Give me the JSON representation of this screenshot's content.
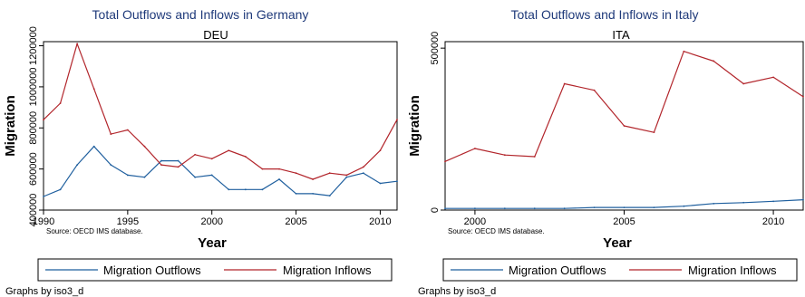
{
  "chart_data": [
    {
      "type": "line",
      "title": "Total Outflows and Inflows in Germany",
      "subtitle": "DEU",
      "xlabel": "Year",
      "ylabel": "Migration",
      "xlim": [
        1990,
        2011
      ],
      "ylim": [
        400000,
        1220000
      ],
      "x_ticks": [
        1990,
        1995,
        2000,
        2005,
        2010
      ],
      "y_ticks": [
        {
          "value": 400000,
          "label": "400000"
        },
        {
          "value": 600000,
          "label": "600000"
        },
        {
          "value": 800000,
          "label": "800000"
        },
        {
          "value": 1000000,
          "label": "1000000"
        },
        {
          "value": 1200000,
          "label": "1200000"
        }
      ],
      "source": "Source: OECD IMS database.",
      "series": [
        {
          "name": "Migration Outflows",
          "color": "#1f5f9e",
          "x": [
            1990,
            1991,
            1992,
            1993,
            1994,
            1995,
            1996,
            1997,
            1998,
            1999,
            2000,
            2001,
            2002,
            2003,
            2004,
            2005,
            2006,
            2007,
            2008,
            2009,
            2010,
            2011
          ],
          "values": [
            466000,
            500000,
            620000,
            710000,
            620000,
            570000,
            560000,
            640000,
            640000,
            560000,
            570000,
            500000,
            500000,
            500000,
            550000,
            480000,
            480000,
            470000,
            560000,
            580000,
            530000,
            540000
          ]
        },
        {
          "name": "Migration Inflows",
          "color": "#b2252b",
          "x": [
            1990,
            1991,
            1992,
            1993,
            1994,
            1995,
            1996,
            1997,
            1998,
            1999,
            2000,
            2001,
            2002,
            2003,
            2004,
            2005,
            2006,
            2007,
            2008,
            2009,
            2010,
            2011
          ],
          "values": [
            840000,
            920000,
            1210000,
            990000,
            770000,
            790000,
            710000,
            620000,
            610000,
            670000,
            650000,
            690000,
            660000,
            600000,
            600000,
            580000,
            550000,
            580000,
            570000,
            610000,
            690000,
            840000
          ]
        }
      ]
    },
    {
      "type": "line",
      "title": "Total Outflows and Inflows in Italy",
      "subtitle": "ITA",
      "xlabel": "Year",
      "ylabel": "Migration",
      "xlim": [
        1999,
        2011
      ],
      "ylim": [
        0,
        520000
      ],
      "x_ticks": [
        2000,
        2005,
        2010
      ],
      "y_ticks": [
        {
          "value": 0,
          "label": "0"
        },
        {
          "value": 500000,
          "label": "500000"
        }
      ],
      "source": "Source: OECD IMS database.",
      "series": [
        {
          "name": "Migration Outflows",
          "color": "#1f5f9e",
          "x": [
            1999,
            2000,
            2001,
            2002,
            2003,
            2004,
            2005,
            2006,
            2007,
            2008,
            2009,
            2010,
            2011
          ],
          "values": [
            5000,
            5000,
            5000,
            5000,
            5000,
            8000,
            8000,
            8000,
            12000,
            20000,
            23000,
            27000,
            32000
          ]
        },
        {
          "name": "Migration Inflows",
          "color": "#b2252b",
          "x": [
            1999,
            2000,
            2001,
            2002,
            2003,
            2004,
            2005,
            2006,
            2007,
            2008,
            2009,
            2010,
            2011
          ],
          "values": [
            150000,
            190000,
            170000,
            165000,
            390000,
            370000,
            260000,
            240000,
            490000,
            460000,
            390000,
            410000,
            350000
          ]
        }
      ]
    }
  ],
  "legend": {
    "outflows_label": "Migration Outflows",
    "inflows_label": "Migration Inflows"
  },
  "byline": "Graphs by iso3_d"
}
